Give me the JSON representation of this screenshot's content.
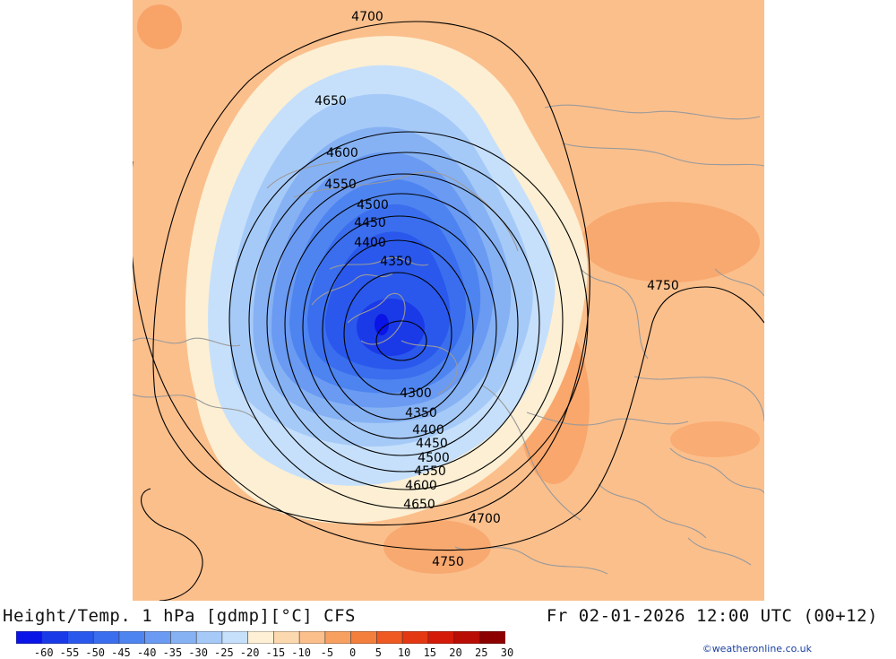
{
  "title": "Height/Temp. 1 hPa [gdmp][°C] CFS",
  "datetime": "Fr 02-01-2026 12:00 UTC (00+12)",
  "credit": "©weatheronline.co.uk",
  "colors": {
    "background": "#fbbf8c",
    "cold_core": "#0a37f0",
    "pale_ring": "#fcefd3",
    "contour": "#000000",
    "coastline": "#9a9a9a"
  },
  "contours": {
    "labels": [
      "4700",
      "4650",
      "4600",
      "4550",
      "4500",
      "4450",
      "4400",
      "4350",
      "4300",
      "4350",
      "4400",
      "4450",
      "4500",
      "4550",
      "4600",
      "4650",
      "4700",
      "4750",
      "4750"
    ]
  },
  "scale": {
    "labels": [
      "-60",
      "-55",
      "-50",
      "-45",
      "-40",
      "-35",
      "-30",
      "-25",
      "-20",
      "-15",
      "-10",
      "-5",
      "0",
      "5",
      "10",
      "15",
      "20",
      "25",
      "30"
    ],
    "colors": [
      "#0a14e6",
      "#1a3ae8",
      "#2a58ec",
      "#3a6eee",
      "#4e84f0",
      "#6a9af2",
      "#86b2f4",
      "#a6caf8",
      "#c6e0fb",
      "#fdf0d5",
      "#fcd8ae",
      "#fbbf8c",
      "#f8a060",
      "#f47e3c",
      "#ee5a22",
      "#e43812",
      "#d41a08",
      "#b80c04",
      "#8c0000"
    ]
  }
}
